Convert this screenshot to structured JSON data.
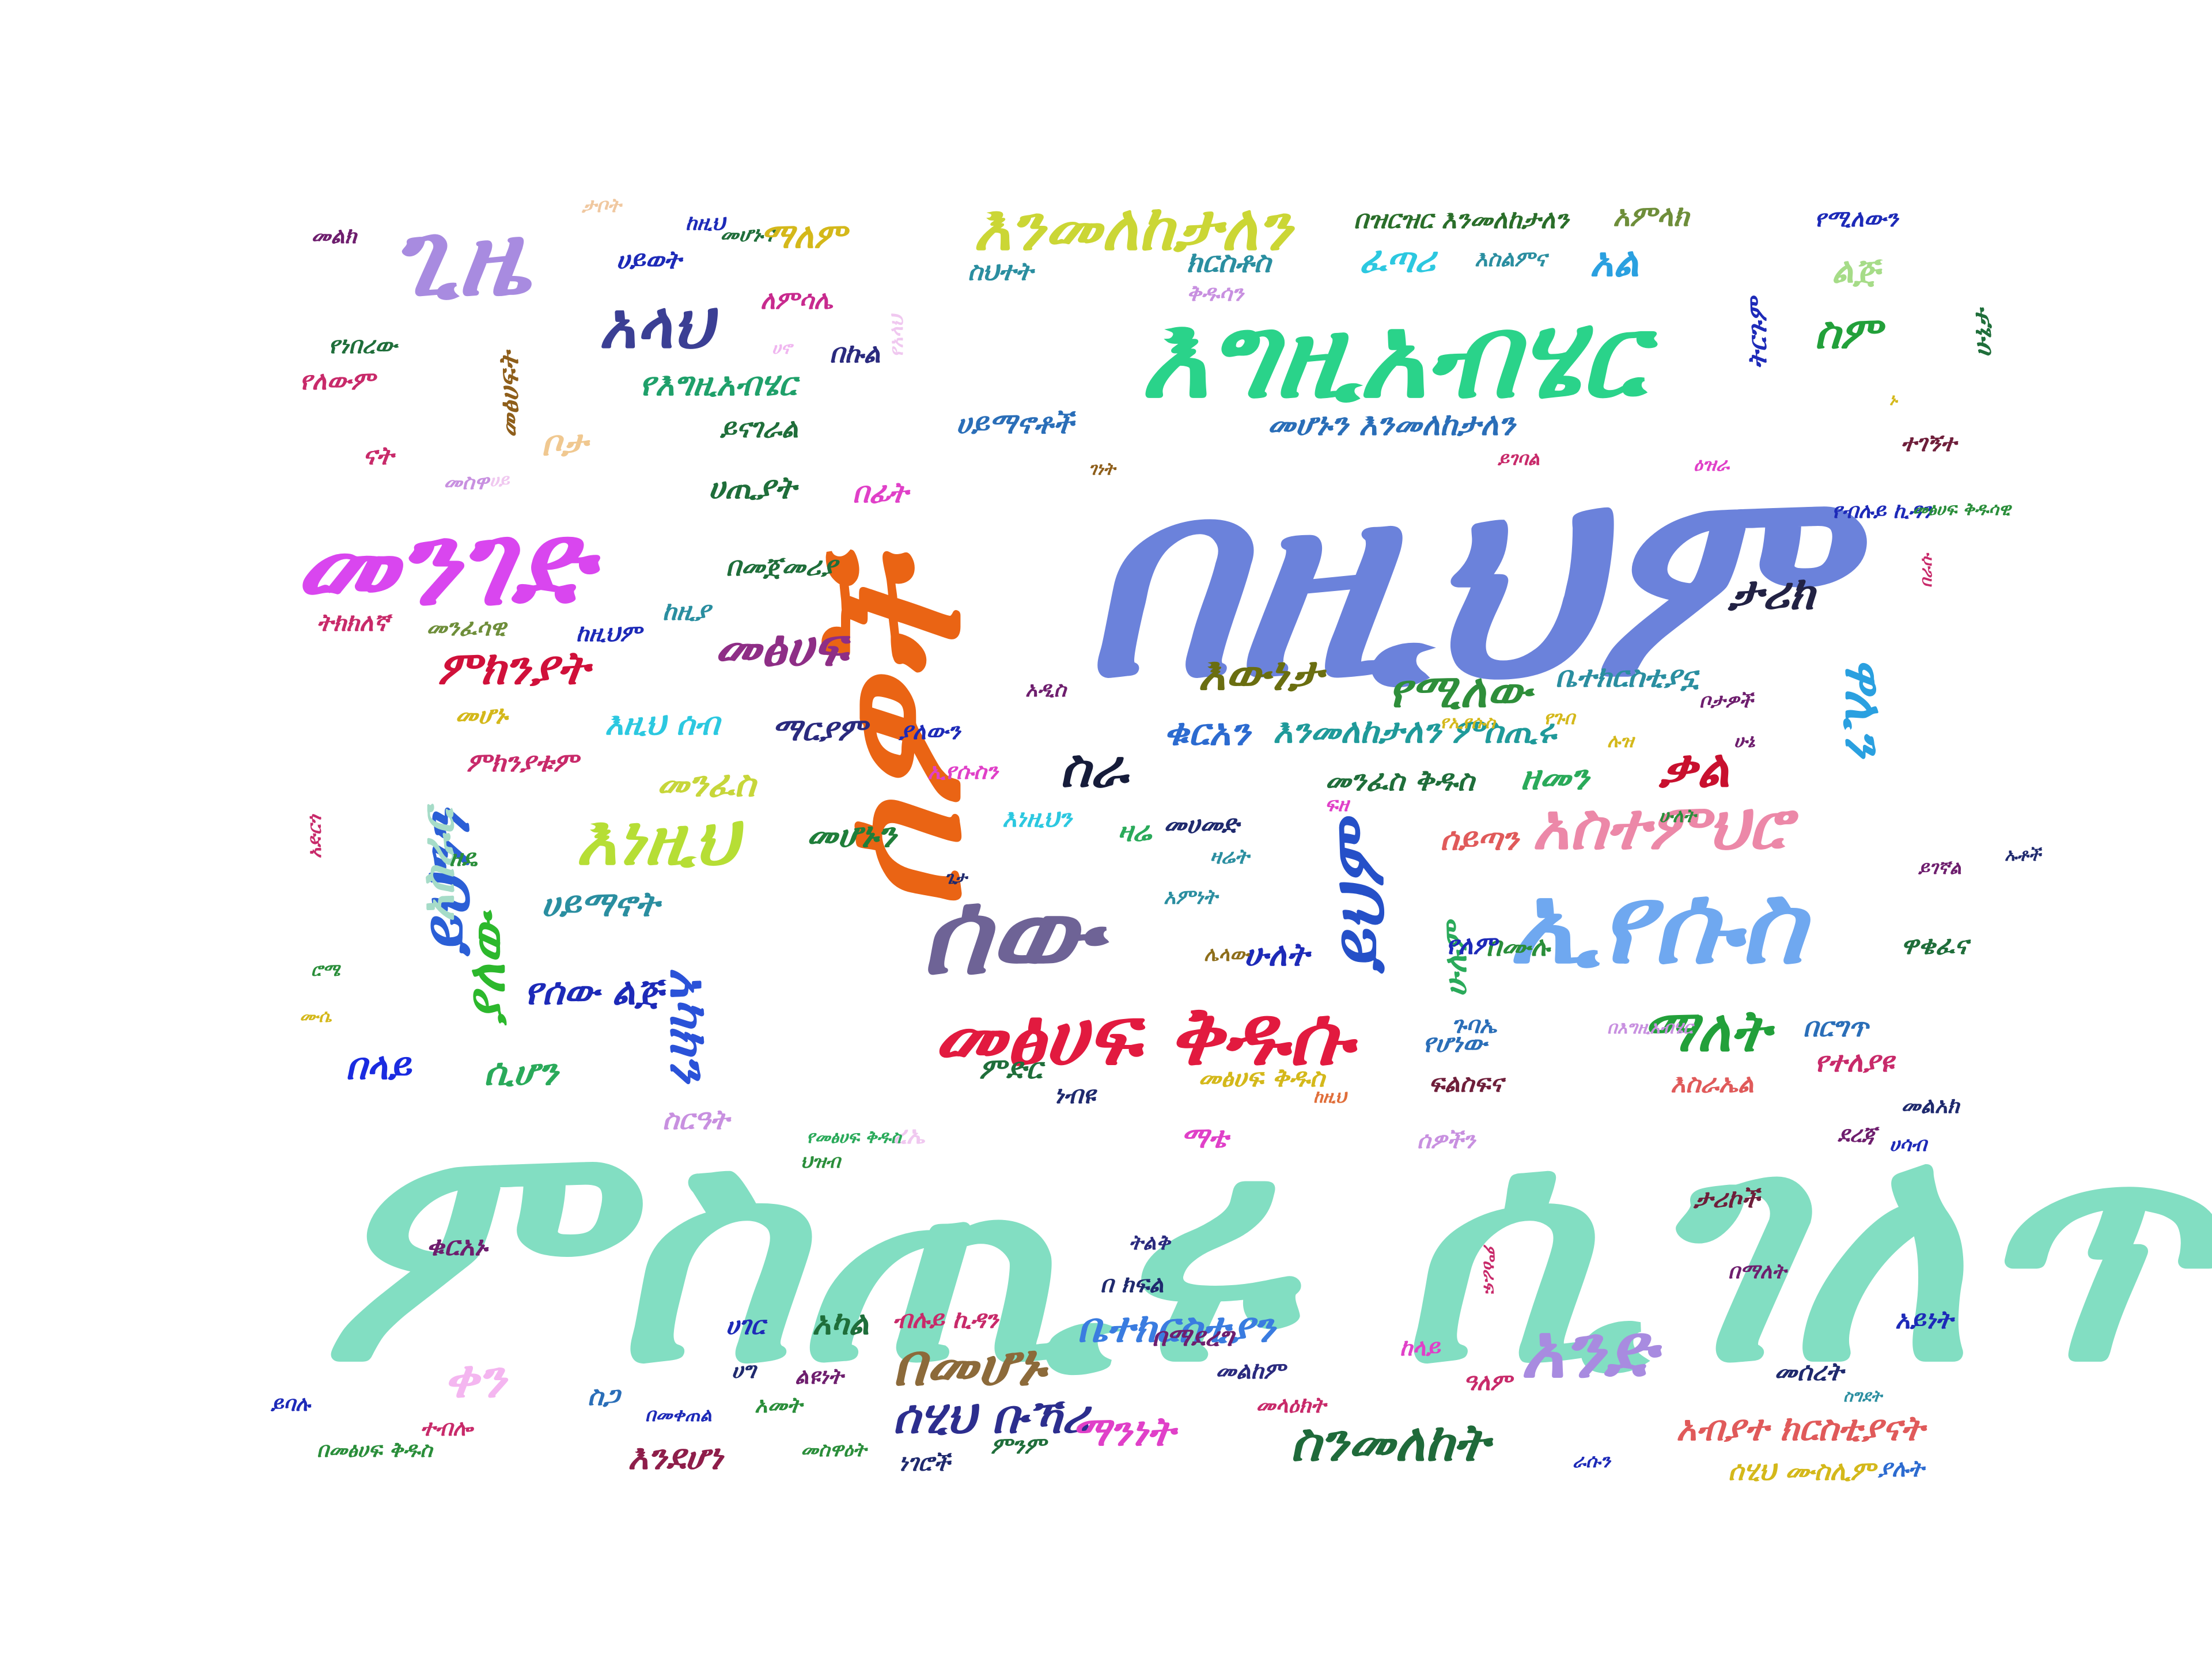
{
  "words": [
    {
      "text": "ምስጢሩ ሲገለጥ",
      "color": "#82DEC2"
    },
    {
      "text": "በዚህም",
      "color": "#6B82DB"
    },
    {
      "text": "ሰዎች",
      "color": "#EA6414"
    },
    {
      "text": "እግዚአብሄር",
      "color": "#2AD38A"
    },
    {
      "text": "ጊዜ",
      "color": "#A88BE0"
    },
    {
      "text": "መንገድ",
      "color": "#D946EF"
    },
    {
      "text": "ሰው",
      "color": "#6E6396"
    },
    {
      "text": "ኢየሱስ",
      "color": "#6FA8F0"
    },
    {
      "text": "መፅሀፍ ቅዱሱ",
      "color": "#E21A3F"
    },
    {
      "text": "እንመለከታለን",
      "color": "#CBD635"
    },
    {
      "text": "አንድ",
      "color": "#A88BE0"
    },
    {
      "text": "በመሆኑ",
      "color": "#8C6A3A"
    },
    {
      "text": "አላህ",
      "color": "#3B3F94"
    },
    {
      "text": "እነዚህ",
      "color": "#B6DE35"
    },
    {
      "text": "ይህንን",
      "color": "#2B5FD6"
    },
    {
      "text": "ይህም",
      "color": "#2550C8"
    },
    {
      "text": "አስተምህሮ",
      "color": "#EC88A8"
    },
    {
      "text": "ማለት",
      "color": "#22A03A"
    },
    {
      "text": "ስንመለከት",
      "color": "#1F6A3A"
    },
    {
      "text": "ቀን",
      "color": "#F4B6F0"
    },
    {
      "text": "ዋሊን",
      "color": "#2AA0E0"
    },
    {
      "text": "ሰሂህ ቡኻሪ",
      "color": "#2C2E8E"
    },
    {
      "text": "ምክንያት",
      "color": "#D0103A"
    },
    {
      "text": "መፅሀፍ",
      "color": "#8E2E86"
    },
    {
      "text": "ታሪክ",
      "color": "#222244"
    },
    {
      "text": "ቃል",
      "color": "#C8102E"
    },
    {
      "text": "ስራ",
      "color": "#161C3A"
    },
    {
      "text": "አስራር",
      "color": "#A6DCC8"
    },
    {
      "text": "ያለው",
      "color": "#2CB82C"
    },
    {
      "text": "አካክን",
      "color": "#2A52D8"
    },
    {
      "text": "እውነታ",
      "color": "#6A6E10"
    },
    {
      "text": "የሚለው",
      "color": "#2E8E3A"
    },
    {
      "text": "ቁርአን",
      "color": "#2C6BD0"
    },
    {
      "text": "እንመለከታለን ምስጢሩ",
      "color": "#1F9A9A"
    },
    {
      "text": "ቤተክርስቲያን",
      "color": "#3A7CE0"
    },
    {
      "text": "ማንነት",
      "color": "#E040C8"
    },
    {
      "text": "አብያተ ክርስቲያናት",
      "color": "#E05A5A"
    },
    {
      "text": "ሰሂህ ሙስሊም",
      "color": "#D4B81A"
    },
    {
      "text": "ያሉት",
      "color": "#2C6BD0"
    },
    {
      "text": "እንደሆነ",
      "color": "#8E1E4A"
    },
    {
      "text": "በላይ",
      "color": "#1A2BE0"
    },
    {
      "text": "ሲሆን",
      "color": "#2AAA5A"
    },
    {
      "text": "የሰው ልጅ",
      "color": "#1D2AB8"
    },
    {
      "text": "ሁለት",
      "color": "#1D2AB8"
    },
    {
      "text": "መንፈስ",
      "color": "#C7D63A"
    },
    {
      "text": "መሆኑን",
      "color": "#1F7E3A"
    },
    {
      "text": "ሀይማኖት",
      "color": "#2A8EA0"
    },
    {
      "text": "የእግዚአብሄር",
      "color": "#1FA06A"
    },
    {
      "text": "ይናገራል",
      "color": "#1F6E3A"
    },
    {
      "text": "ሀጢያት",
      "color": "#1F6E3A"
    },
    {
      "text": "በፊት",
      "color": "#E040C8"
    },
    {
      "text": "ቦታ",
      "color": "#F0C890"
    },
    {
      "text": "በመጀመሪያ",
      "color": "#1F6E3A"
    },
    {
      "text": "መንፈሳዊ",
      "color": "#6E8E3A"
    },
    {
      "text": "ትክክለኛ",
      "color": "#C82A6A"
    },
    {
      "text": "ከዚህም",
      "color": "#1D2AB8"
    },
    {
      "text": "ከዚያ",
      "color": "#2A8EA0"
    },
    {
      "text": "እዚህ ሰብ",
      "color": "#2CC8E0"
    },
    {
      "text": "ማርያም",
      "color": "#2A2A7E"
    },
    {
      "text": "ምክንያቱም",
      "color": "#C82A6A"
    },
    {
      "text": "መሆኑ",
      "color": "#D4B81A"
    },
    {
      "text": "ዘመን",
      "color": "#2AAA5A"
    },
    {
      "text": "መንፈስ ቅዱስ",
      "color": "#1F6E3A"
    },
    {
      "text": "ቤተክርስቲያኗ",
      "color": "#2A8EA0"
    },
    {
      "text": "ሰይጣን",
      "color": "#E05A5A"
    },
    {
      "text": "በሙሉ",
      "color": "#2A8E3A"
    },
    {
      "text": "ሁሉም",
      "color": "#2AAA5A"
    },
    {
      "text": "የለም",
      "color": "#1D2AB8"
    },
    {
      "text": "ዋቄፈና",
      "color": "#1F6E3A"
    },
    {
      "text": "ክርስቶስ",
      "color": "#2A8EA0"
    },
    {
      "text": "ፈጣሪ",
      "color": "#2CC8E0"
    },
    {
      "text": "እስልምና",
      "color": "#2A8EA0"
    },
    {
      "text": "አል",
      "color": "#2AA0E0"
    },
    {
      "text": "ስም",
      "color": "#22A03A"
    },
    {
      "text": "ልጅ",
      "color": "#A6DC88"
    },
    {
      "text": "ሁኔታ",
      "color": "#1F6E3A"
    },
    {
      "text": "ትርጉም",
      "color": "#1D2AB8"
    },
    {
      "text": "አምላክ",
      "color": "#6E8E3A"
    },
    {
      "text": "በዝርዝር እንመለከታለን",
      "color": "#2A6E2A"
    },
    {
      "text": "የሚለውን",
      "color": "#1D2AB8"
    },
    {
      "text": "ሀይማኖቶች",
      "color": "#2A6EB8"
    },
    {
      "text": "መሆኑን እንመለከታለን",
      "color": "#2A6EB8"
    },
    {
      "text": "ስህተት",
      "color": "#2A8EA0"
    },
    {
      "text": "ሀይወት",
      "color": "#1D2AB8"
    },
    {
      "text": "ለምሳሌ",
      "color": "#C82A8E"
    },
    {
      "text": "የነበረው",
      "color": "#1F6E3A"
    },
    {
      "text": "የለውም",
      "color": "#C82A6A"
    },
    {
      "text": "መልክ",
      "color": "#6E1E6E"
    },
    {
      "text": "መፅሀፍት",
      "color": "#8E5E1A"
    },
    {
      "text": "ናት",
      "color": "#C82A6A"
    },
    {
      "text": "በኩል",
      "color": "#2A2A7E"
    },
    {
      "text": "ጉባኤ",
      "color": "#2A6EB8"
    },
    {
      "text": "ምድር",
      "color": "#1F6E3A"
    },
    {
      "text": "ነብዩ",
      "color": "#1F2A6E"
    },
    {
      "text": "መፅሀፍ ቅዱስ",
      "color": "#D4B81A"
    },
    {
      "text": "ፍልስፍና",
      "color": "#6E1E3A"
    },
    {
      "text": "የሆነው",
      "color": "#2A6EB8"
    },
    {
      "text": "ማቴ",
      "color": "#E040C8"
    },
    {
      "text": "ሰዎችን",
      "color": "#C890E0"
    },
    {
      "text": "ደረጃ",
      "color": "#6E1E6E"
    },
    {
      "text": "መልአክ",
      "color": "#1F2A6E"
    },
    {
      "text": "እስራኤል",
      "color": "#E05A5A"
    },
    {
      "text": "የተለያዩ",
      "color": "#C82A6A"
    },
    {
      "text": "በርግጥ",
      "color": "#2A6EB8"
    },
    {
      "text": "ቁርአኑ",
      "color": "#6E1E6E"
    },
    {
      "text": "አካል",
      "color": "#1F6E3A"
    },
    {
      "text": "ብሉይ ኪዳን",
      "color": "#C82A6A"
    },
    {
      "text": "በ ክፍል",
      "color": "#1F2A6E"
    },
    {
      "text": "ትልቅ",
      "color": "#2A2A7E"
    },
    {
      "text": "ሀገር",
      "color": "#1D2AB8"
    },
    {
      "text": "ሀግ",
      "color": "#1F2A6E"
    },
    {
      "text": "ልዩነት",
      "color": "#6E1E6E"
    },
    {
      "text": "አመት",
      "color": "#2A8E3A"
    },
    {
      "text": "ስጋ",
      "color": "#2A6EB8"
    },
    {
      "text": "ይባሉ",
      "color": "#1D2AB8"
    },
    {
      "text": "በመፅሀፍ ቅዱስ",
      "color": "#2A8E3A"
    },
    {
      "text": "ተብሎ",
      "color": "#C82A6A"
    },
    {
      "text": "በመቀጠል",
      "color": "#1D2AB8"
    },
    {
      "text": "መስዋዕት",
      "color": "#2A8E3A"
    },
    {
      "text": "ነገሮች",
      "color": "#1F2A6E"
    },
    {
      "text": "ምንም",
      "color": "#1F6E3A"
    },
    {
      "text": "መልከም",
      "color": "#2A2A7E"
    },
    {
      "text": "መላዕክት",
      "color": "#C82A6A"
    },
    {
      "text": "ዓለም",
      "color": "#C82A6A"
    },
    {
      "text": "ከላይ",
      "color": "#E040C8"
    },
    {
      "text": "መሰረት",
      "color": "#1F2A6E"
    },
    {
      "text": "አይነት",
      "color": "#1D2AB8"
    },
    {
      "text": "ዛሬ",
      "color": "#2AAA5A"
    },
    {
      "text": "መሀመድ",
      "color": "#1F2A6E"
    },
    {
      "text": "ዛሬት",
      "color": "#2A8EA0"
    },
    {
      "text": "እነዚህን",
      "color": "#2CC8E0"
    },
    {
      "text": "ኢየሱስን",
      "color": "#E040C8"
    },
    {
      "text": "ያለውን",
      "color": "#1D2AB8"
    },
    {
      "text": "ፍዘ",
      "color": "#E040C8"
    },
    {
      "text": "አዲስ",
      "color": "#6E1E6E"
    },
    {
      "text": "የጉበ",
      "color": "#D4B81A"
    },
    {
      "text": "ቦታዎች",
      "color": "#6E1E6E"
    },
    {
      "text": "ሉዝ",
      "color": "#D4B81A"
    },
    {
      "text": "ሁኔ",
      "color": "#6E1E6E"
    },
    {
      "text": "ታሪኮች",
      "color": "#6E1E3A"
    },
    {
      "text": "በማለት",
      "color": "#6E1E6E"
    },
    {
      "text": "ሀሳብ",
      "color": "#1D2AB8"
    },
    {
      "text": "ምዕራፍ",
      "color": "#C82A6A"
    },
    {
      "text": "ዘዴ",
      "color": "#2A8E3A"
    },
    {
      "text": "በማደረግ",
      "color": "#6E1E6E"
    },
    {
      "text": "ይገኛል",
      "color": "#6E1E6E"
    },
    {
      "text": "ጌታ",
      "color": "#1F2A6E"
    },
    {
      "text": "ኡቶች",
      "color": "#1F2A6E"
    },
    {
      "text": "አድርጎ",
      "color": "#C82A6A"
    },
    {
      "text": "ረኤ",
      "color": "#F0C8F0"
    },
    {
      "text": "ህዝብ",
      "color": "#2A8E3A"
    },
    {
      "text": "የመፅሀፍ ቅዱስ",
      "color": "#2AAA5A"
    },
    {
      "text": "ስርዓት",
      "color": "#C890E0"
    },
    {
      "text": "የኢየሱስ",
      "color": "#D4B81A"
    },
    {
      "text": "ሮሜ",
      "color": "#2A8E3A"
    },
    {
      "text": "ሙሴ",
      "color": "#D4B81A"
    },
    {
      "text": "ሌላው",
      "color": "#8E6E1A"
    },
    {
      "text": "አምነት",
      "color": "#2A8EA0"
    },
    {
      "text": "በእግዚአብሄር",
      "color": "#C890E0"
    },
    {
      "text": "ከዚህ",
      "color": "#E06E3A"
    },
    {
      "text": "ገነት",
      "color": "#8E5E1A"
    },
    {
      "text": "ይገባል",
      "color": "#C82A6A"
    },
    {
      "text": "ዕዝራ",
      "color": "#E040C8"
    },
    {
      "text": "ተገኝተ",
      "color": "#6E1E3A"
    },
    {
      "text": "የብሉይ ኪዳን",
      "color": "#1D2AB8"
    },
    {
      "text": "መፅሀፍ ቅዱሳዊ",
      "color": "#2A8E3A"
    },
    {
      "text": "በራሱ",
      "color": "#C82A6A"
    },
    {
      "text": "ሀኖ",
      "color": "#F0B6F0"
    },
    {
      "text": "የአላህ",
      "color": "#F0C8F0"
    },
    {
      "text": "ቅዱሳን",
      "color": "#C890E0"
    },
    {
      "text": "መሆኑና",
      "color": "#1F6E3A"
    },
    {
      "text": "ከዚህ",
      "color": "#1D2AB8"
    },
    {
      "text": "ማለም",
      "color": "#D4B81A"
    },
    {
      "text": "ታቦት",
      "color": "#F0C8A0"
    },
    {
      "text": "ስግደት",
      "color": "#2A8EA0"
    },
    {
      "text": "ራሱን",
      "color": "#1D2AB8"
    },
    {
      "text": "ሁለት",
      "color": "#2A8E3A"
    },
    {
      "text": "ኑ",
      "color": "#D4B81A"
    },
    {
      "text": "መስዋ",
      "color": "#C890E0"
    },
    {
      "text": "ሀይ",
      "color": "#F0C8F0"
    }
  ]
}
